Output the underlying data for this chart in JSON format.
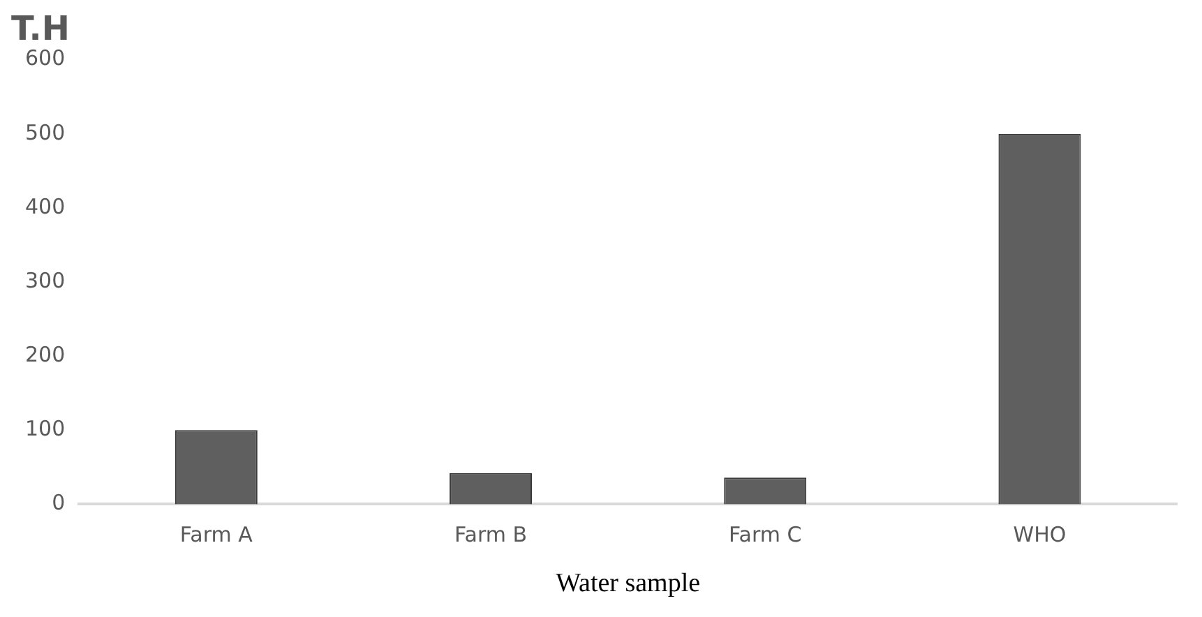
{
  "chart_data": {
    "type": "bar",
    "title": "T.H",
    "xlabel": "Water sample",
    "categories": [
      "Farm A",
      "Farm B",
      "Farm C",
      "WHO"
    ],
    "values": [
      100,
      42,
      36,
      500
    ],
    "color": "#5f5f5f",
    "ylim": [
      0,
      600
    ],
    "yticks": [
      0,
      100,
      200,
      300,
      400,
      500,
      600
    ],
    "grid": false,
    "legend": false
  }
}
